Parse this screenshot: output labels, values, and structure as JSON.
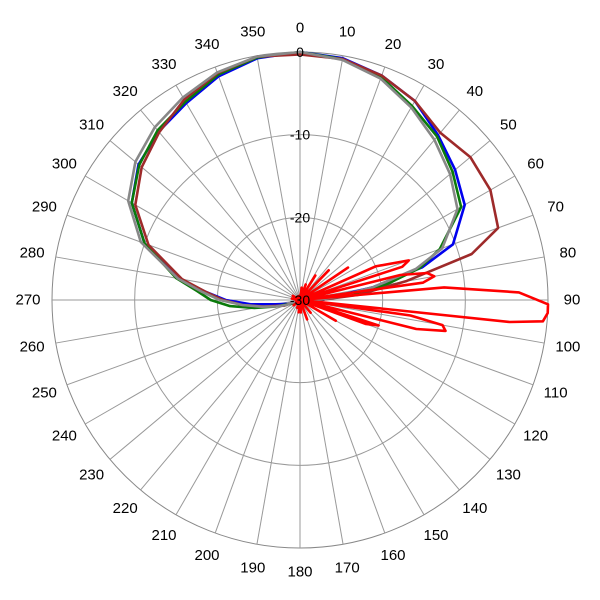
{
  "chart_data": {
    "type": "polar-line",
    "title": "",
    "angular_axis": {
      "unit": "degrees",
      "direction": "clockwise",
      "zero": "top",
      "tick_step": 10,
      "tick_labels": [
        "0",
        "10",
        "20",
        "30",
        "40",
        "50",
        "60",
        "70",
        "80",
        "90",
        "100",
        "110",
        "120",
        "130",
        "140",
        "150",
        "160",
        "170",
        "180",
        "190",
        "200",
        "210",
        "220",
        "230",
        "240",
        "250",
        "260",
        "270",
        "280",
        "290",
        "300",
        "310",
        "320",
        "330",
        "340",
        "350"
      ]
    },
    "radial_axis": {
      "range": [
        -30,
        0
      ],
      "ticks": [
        0,
        -10,
        -20,
        -30
      ],
      "tick_labels": [
        "0",
        "-10",
        "-20",
        "-30"
      ]
    },
    "grid": true,
    "series": [
      {
        "color": "#0000ee",
        "points": [
          [
            0,
            0
          ],
          [
            10,
            -0.3
          ],
          [
            20,
            -1.1
          ],
          [
            30,
            -2.2
          ],
          [
            40,
            -4.0
          ],
          [
            50,
            -5.5
          ],
          [
            60,
            -7.0
          ],
          [
            70,
            -10.3
          ],
          [
            75,
            -14.7
          ],
          [
            80,
            -21.0
          ],
          [
            85,
            -26.2
          ],
          [
            90,
            -27.3
          ],
          [
            95,
            -29
          ],
          [
            100,
            -30
          ],
          [
            250,
            -28.5
          ],
          [
            255,
            -28.2
          ],
          [
            260,
            -27.0
          ],
          [
            265,
            -24.0
          ],
          [
            270,
            -21.0
          ],
          [
            275,
            -18.5
          ],
          [
            280,
            -15.0
          ],
          [
            290,
            -10.0
          ],
          [
            300,
            -6.5
          ],
          [
            310,
            -4.5
          ],
          [
            320,
            -3.4
          ],
          [
            330,
            -2.5
          ],
          [
            340,
            -1.2
          ],
          [
            350,
            -0.3
          ],
          [
            360,
            0
          ]
        ]
      },
      {
        "color": "#0a7a0a",
        "points": [
          [
            0,
            0
          ],
          [
            10,
            -0.4
          ],
          [
            20,
            -1.3
          ],
          [
            30,
            -2.9
          ],
          [
            40,
            -4.2
          ],
          [
            50,
            -5.9
          ],
          [
            60,
            -7.5
          ],
          [
            70,
            -12.0
          ],
          [
            75,
            -15.0
          ],
          [
            80,
            -19.5
          ],
          [
            85,
            -24.5
          ],
          [
            90,
            -27.7
          ],
          [
            95,
            -29
          ],
          [
            100,
            -30
          ],
          [
            245,
            -29.0
          ],
          [
            250,
            -28.5
          ],
          [
            255,
            -27.0
          ],
          [
            260,
            -24.4
          ],
          [
            265,
            -21.5
          ],
          [
            270,
            -19.2
          ],
          [
            275,
            -17.5
          ],
          [
            280,
            -14.8
          ],
          [
            290,
            -10.0
          ],
          [
            300,
            -6.5
          ],
          [
            310,
            -4.6
          ],
          [
            320,
            -3.2
          ],
          [
            330,
            -2.3
          ],
          [
            340,
            -1.0
          ],
          [
            350,
            -0.2
          ],
          [
            360,
            0
          ]
        ]
      },
      {
        "color": "#9e2a2a",
        "points": [
          [
            0,
            -0.3
          ],
          [
            10,
            -0.4
          ],
          [
            20,
            -1.1
          ],
          [
            30,
            -2.2
          ],
          [
            40,
            -3.6
          ],
          [
            50,
            -3.1
          ],
          [
            60,
            -3.4
          ],
          [
            70,
            -4.5
          ],
          [
            75,
            -8.5
          ],
          [
            80,
            -17.0
          ],
          [
            85,
            -23.0
          ],
          [
            90,
            -27.6
          ],
          [
            95,
            -29
          ],
          [
            100,
            -30
          ],
          [
            250,
            -28.0
          ],
          [
            255,
            -27.3
          ],
          [
            260,
            -25.5
          ],
          [
            265,
            -23.0
          ],
          [
            270,
            -20.7
          ],
          [
            275,
            -18.5
          ],
          [
            280,
            -15.5
          ],
          [
            290,
            -10.5
          ],
          [
            300,
            -7.0
          ],
          [
            310,
            -5.0
          ],
          [
            320,
            -3.5
          ],
          [
            330,
            -2.0
          ],
          [
            340,
            -0.8
          ],
          [
            350,
            -0.1
          ],
          [
            360,
            -0.3
          ]
        ]
      },
      {
        "color": "#888888",
        "points": [
          [
            0,
            0
          ],
          [
            10,
            -0.5
          ],
          [
            20,
            -1.5
          ],
          [
            30,
            -3.1
          ],
          [
            40,
            -4.7
          ],
          [
            50,
            -6.3
          ],
          [
            60,
            -8.0
          ],
          [
            70,
            -11.7
          ],
          [
            75,
            -15.5
          ],
          [
            80,
            -21.0
          ],
          [
            85,
            -25.5
          ],
          [
            90,
            -28.0
          ],
          [
            95,
            -29
          ],
          [
            100,
            -30
          ],
          [
            250,
            -28.2
          ],
          [
            255,
            -27.0
          ],
          [
            260,
            -25.3
          ],
          [
            265,
            -23.0
          ],
          [
            270,
            -20.3
          ],
          [
            275,
            -18.0
          ],
          [
            280,
            -15.0
          ],
          [
            290,
            -9.5
          ],
          [
            300,
            -6.0
          ],
          [
            310,
            -4.0
          ],
          [
            320,
            -2.7
          ],
          [
            330,
            -1.7
          ],
          [
            340,
            -0.7
          ],
          [
            350,
            -0.1
          ],
          [
            360,
            0
          ]
        ]
      },
      {
        "color": "#ff0000",
        "points": [
          [
            0,
            -30
          ],
          [
            8,
            -28.5
          ],
          [
            14,
            -30
          ],
          [
            20,
            -28.0
          ],
          [
            26,
            -30
          ],
          [
            32,
            -26.5
          ],
          [
            38,
            -30
          ],
          [
            44,
            -25.0
          ],
          [
            50,
            -30
          ],
          [
            56,
            -23.0
          ],
          [
            62,
            -30
          ],
          [
            66,
            -20.0
          ],
          [
            70,
            -16.0
          ],
          [
            72,
            -17.0
          ],
          [
            74,
            -30
          ],
          [
            76,
            -17.5
          ],
          [
            78,
            -14.3
          ],
          [
            80,
            -13.5
          ],
          [
            82,
            -15.0
          ],
          [
            84,
            -30
          ],
          [
            85,
            -12.5
          ],
          [
            88,
            -3.5
          ],
          [
            91,
            0.5
          ],
          [
            93,
            0.5
          ],
          [
            95,
            -0.5
          ],
          [
            96,
            -4.5
          ],
          [
            97,
            -30
          ],
          [
            98,
            -16.5
          ],
          [
            100,
            -12.5
          ],
          [
            102,
            -12.0
          ],
          [
            104,
            -15.5
          ],
          [
            106,
            -30
          ],
          [
            108,
            -20.0
          ],
          [
            110,
            -21.5
          ],
          [
            112,
            -30
          ],
          [
            120,
            -25.0
          ],
          [
            126,
            -30
          ],
          [
            140,
            -28.0
          ],
          [
            150,
            -30
          ],
          [
            160,
            -27.5
          ],
          [
            166,
            -30
          ],
          [
            176,
            -28.5
          ],
          [
            180,
            -30
          ],
          [
            186,
            -28.5
          ],
          [
            190,
            -30
          ],
          [
            200,
            -29.0
          ],
          [
            210,
            -30
          ],
          [
            230,
            -29.0
          ],
          [
            240,
            -30
          ],
          [
            260,
            -29.5
          ],
          [
            268,
            -30
          ],
          [
            280,
            -29.0
          ],
          [
            290,
            -30
          ],
          [
            300,
            -29.0
          ],
          [
            310,
            -30
          ],
          [
            330,
            -29.5
          ],
          [
            340,
            -30
          ],
          [
            350,
            -29.5
          ],
          [
            360,
            -30
          ]
        ]
      }
    ]
  }
}
